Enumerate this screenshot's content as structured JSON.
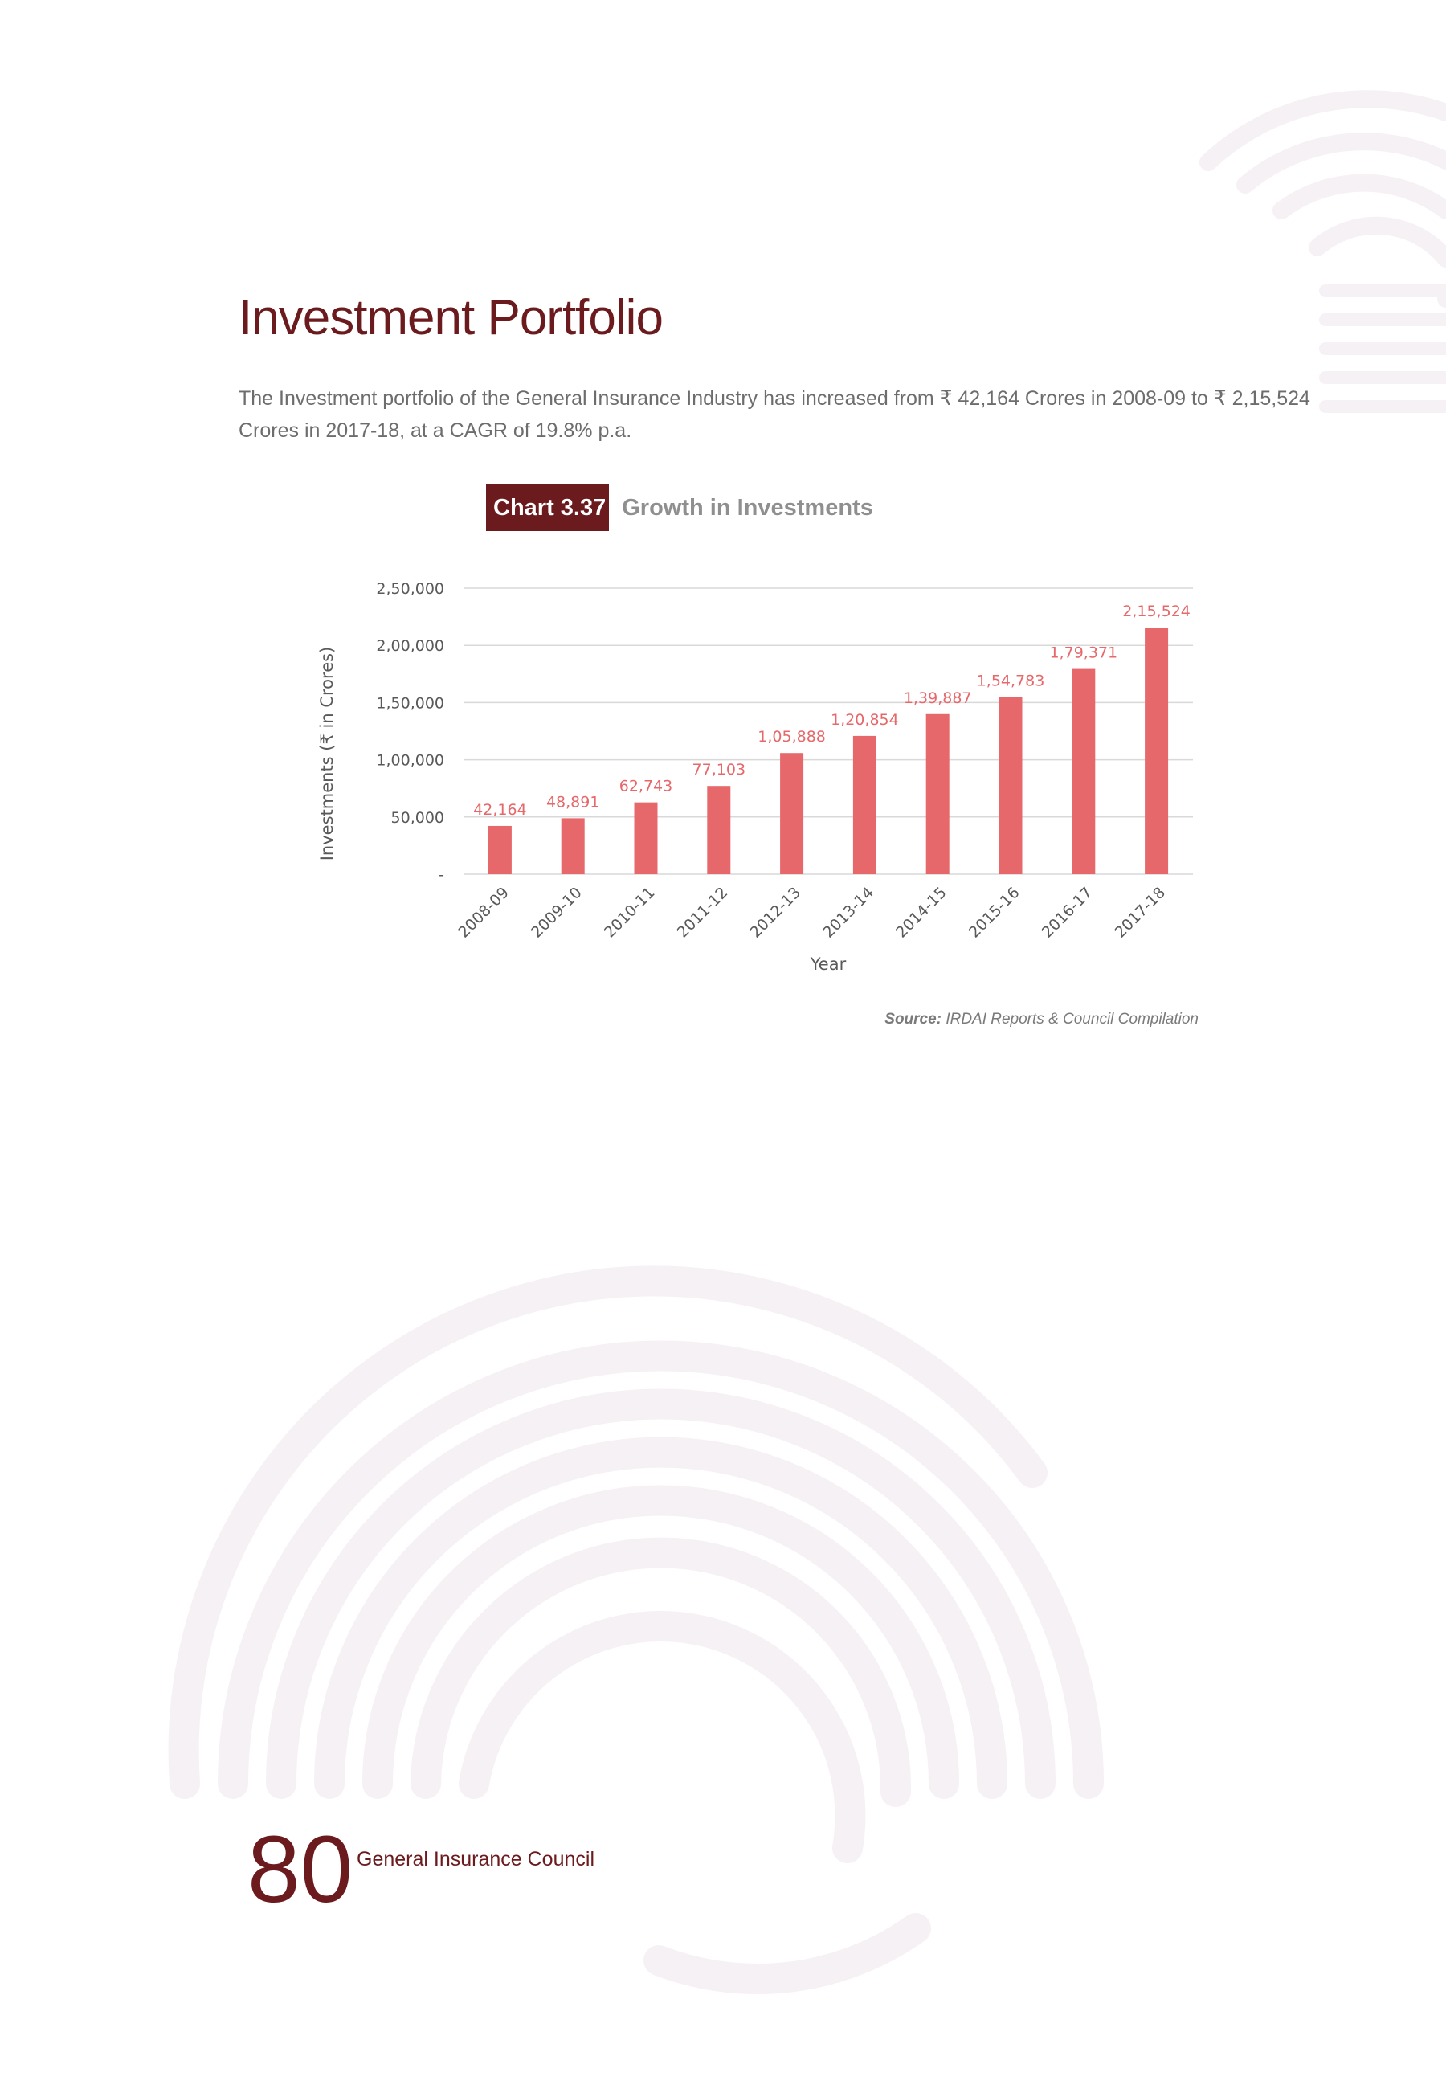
{
  "page": {
    "title": "Investment Portfolio",
    "intro_text": "The Investment portfolio of the General Insurance Industry has increased from ₹ 42,164 Crores in 2008-09 to ₹ 2,15,524 Crores in 2017-18, at a CAGR of 19.8% p.a.",
    "chart_label": "Chart 3.37",
    "chart_title": "Growth in Investments",
    "source_label": "Source:",
    "source_text": "IRDAI Reports & Council Compilation",
    "page_number": "80",
    "footer_org": "General Insurance Council"
  },
  "colors": {
    "brand": "#6b1a1d",
    "bar": "#e6686a",
    "data_label": "#e6686a",
    "gridline": "#d9d9d9",
    "decoration": "#f6f1f4"
  },
  "chart_data": {
    "type": "bar",
    "title": "Growth in Investments",
    "xlabel": "Year",
    "ylabel": "Investments (₹ in Crores)",
    "categories": [
      "2008-09",
      "2009-10",
      "2010-11",
      "2011-12",
      "2012-13",
      "2013-14",
      "2014-15",
      "2015-16",
      "2016-17",
      "2017-18"
    ],
    "values": [
      42164,
      48891,
      62743,
      77103,
      105888,
      120854,
      139887,
      154783,
      179371,
      215524
    ],
    "value_labels": [
      "42,164",
      "48,891",
      "62,743",
      "77,103",
      "1,05,888",
      "1,20,854",
      "1,39,887",
      "1,54,783",
      "1,79,371",
      "2,15,524"
    ],
    "yticks": [
      0,
      50000,
      100000,
      150000,
      200000,
      250000
    ],
    "ytick_labels": [
      "-",
      "50,000",
      "1,00,000",
      "1,50,000",
      "2,00,000",
      "2,50,000"
    ],
    "ylim": [
      0,
      250000
    ],
    "grid": true,
    "legend": false
  }
}
